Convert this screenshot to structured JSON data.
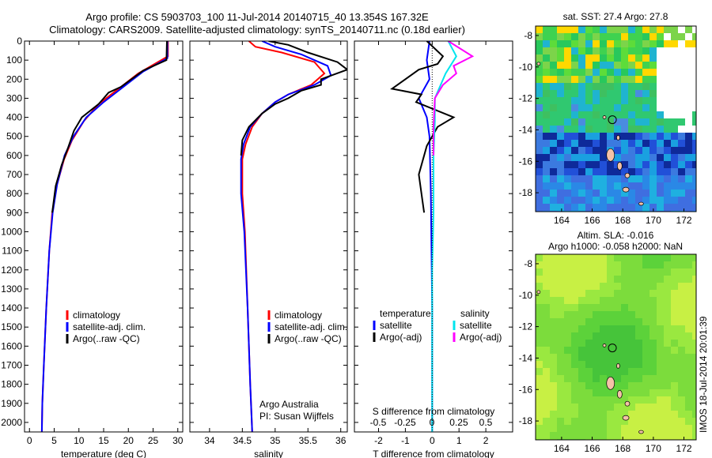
{
  "header": {
    "title_line1": "Argo profile: CS 5903703_100 11-Jul-2014 20140715_40 13.354S 167.32E",
    "title_line2": "Climatology: CARS2009. Satellite-adjusted climatology: synTS_20140711.nc (0.18d earlier)"
  },
  "colors": {
    "climatology": "#ff0000",
    "satellite": "#0000ff",
    "argo": "#000000",
    "sal_satellite": "#00e5ee",
    "sal_argo": "#ff00ff",
    "map_land": "#f4c2a8"
  },
  "chart_data": [
    {
      "id": "temperature",
      "type": "line",
      "xlabel": "temperature (deg C)",
      "xlim": [
        -1,
        31
      ],
      "xticks": [
        0,
        5,
        10,
        15,
        20,
        25,
        30
      ],
      "ylim": [
        0,
        2050
      ],
      "yticks": [
        0,
        100,
        200,
        300,
        400,
        500,
        600,
        700,
        800,
        900,
        1000,
        1100,
        1200,
        1300,
        1400,
        1500,
        1600,
        1700,
        1800,
        1900,
        2000
      ],
      "legend": [
        "climatology",
        "satellite-adj. clim.",
        "Argo(..raw -QC)"
      ],
      "series": [
        {
          "name": "climatology",
          "color": "#ff0000",
          "points": [
            [
              28,
              0
            ],
            [
              28,
              80
            ],
            [
              22,
              170
            ],
            [
              18,
              250
            ],
            [
              14,
              330
            ],
            [
              11,
              420
            ],
            [
              8.6,
              520
            ],
            [
              7,
              620
            ],
            [
              5.5,
              760
            ],
            [
              4.6,
              900
            ],
            [
              4,
              1100
            ],
            [
              3.4,
              1400
            ],
            [
              2.9,
              1700
            ],
            [
              2.6,
              1900
            ],
            [
              2.5,
              2050
            ]
          ]
        },
        {
          "name": "satellite-adj. clim.",
          "color": "#0000ff",
          "points": [
            [
              27.9,
              0
            ],
            [
              27.9,
              90
            ],
            [
              23,
              160
            ],
            [
              19,
              240
            ],
            [
              15,
              320
            ],
            [
              11.5,
              400
            ],
            [
              8.9,
              500
            ],
            [
              7.1,
              600
            ],
            [
              5.6,
              750
            ],
            [
              4.7,
              900
            ],
            [
              4,
              1100
            ],
            [
              3.4,
              1400
            ],
            [
              2.9,
              1700
            ],
            [
              2.6,
              1900
            ],
            [
              2.5,
              2050
            ]
          ]
        },
        {
          "name": "Argo(..raw -QC)",
          "color": "#000000",
          "points": [
            [
              27.8,
              0
            ],
            [
              27.7,
              100
            ],
            [
              23,
              155
            ],
            [
              18.5,
              240
            ],
            [
              16,
              270
            ],
            [
              14,
              330
            ],
            [
              10.6,
              400
            ],
            [
              9,
              470
            ],
            [
              7.8,
              560
            ],
            [
              6.5,
              650
            ],
            [
              5.3,
              760
            ],
            [
              4.6,
              900
            ]
          ]
        }
      ]
    },
    {
      "id": "salinity",
      "type": "line",
      "xlabel": "salinity",
      "xlim": [
        33.7,
        36.1
      ],
      "xticks": [
        34,
        34.5,
        35,
        35.5,
        36
      ],
      "ylim": [
        0,
        2050
      ],
      "legend": [
        "climatology",
        "satellite-adj. clim.",
        "Argo(..raw -QC)"
      ],
      "annotations": [
        "Argo Australia",
        "PI: Susan Wijffels"
      ],
      "series": [
        {
          "name": "climatology",
          "color": "#ff0000",
          "points": [
            [
              34.6,
              0
            ],
            [
              34.7,
              30
            ],
            [
              35.1,
              60
            ],
            [
              35.6,
              110
            ],
            [
              35.75,
              170
            ],
            [
              35.55,
              230
            ],
            [
              35.2,
              280
            ],
            [
              35,
              320
            ],
            [
              34.8,
              380
            ],
            [
              34.65,
              450
            ],
            [
              34.55,
              540
            ],
            [
              34.5,
              620
            ],
            [
              34.5,
              800
            ],
            [
              34.54,
              1000
            ],
            [
              34.58,
              1400
            ],
            [
              34.62,
              1800
            ],
            [
              34.65,
              2050
            ]
          ]
        },
        {
          "name": "satellite-adj. clim.",
          "color": "#0000ff",
          "points": [
            [
              34.8,
              0
            ],
            [
              35,
              30
            ],
            [
              35.4,
              70
            ],
            [
              35.8,
              130
            ],
            [
              35.85,
              180
            ],
            [
              35.6,
              230
            ],
            [
              35.2,
              280
            ],
            [
              35,
              320
            ],
            [
              34.8,
              380
            ],
            [
              34.62,
              450
            ],
            [
              34.52,
              540
            ],
            [
              34.48,
              620
            ],
            [
              34.48,
              800
            ],
            [
              34.53,
              1000
            ],
            [
              34.58,
              1400
            ],
            [
              34.62,
              1800
            ],
            [
              34.65,
              2050
            ]
          ]
        },
        {
          "name": "Argo(..raw -QC)",
          "color": "#000000",
          "points": [
            [
              34.9,
              0
            ],
            [
              35.2,
              20
            ],
            [
              35.5,
              60
            ],
            [
              35.95,
              110
            ],
            [
              36.1,
              150
            ],
            [
              35.7,
              200
            ],
            [
              35.7,
              230
            ],
            [
              35.4,
              260
            ],
            [
              35.2,
              300
            ],
            [
              35,
              330
            ],
            [
              34.8,
              380
            ],
            [
              34.6,
              450
            ],
            [
              34.5,
              520
            ],
            [
              34.48,
              600
            ]
          ]
        }
      ]
    },
    {
      "id": "difference",
      "type": "line",
      "xlabel_top": "S difference from climatology",
      "xlabel": "T difference from climatology",
      "xticks_top": [
        -0.5,
        -0.25,
        0,
        0.25,
        0.5
      ],
      "xticks": [
        -2,
        -1,
        0,
        1,
        2
      ],
      "xlim": [
        -2.9,
        3
      ],
      "ylim": [
        0,
        2050
      ],
      "legend_left_title": "temperature",
      "legend_right_title": "salinity",
      "legend": [
        "satellite",
        "Argo(-adj)",
        "satellite",
        "Argo(-adj)"
      ],
      "series": [
        {
          "name": "T satellite",
          "color": "#0000ff",
          "points": [
            [
              -0.1,
              0
            ],
            [
              -0.2,
              100
            ],
            [
              -0.1,
              200
            ],
            [
              -0.5,
              300
            ],
            [
              -0.2,
              400
            ],
            [
              -0.1,
              500
            ],
            [
              -0.05,
              800
            ],
            [
              0,
              1400
            ],
            [
              0,
              2050
            ]
          ]
        },
        {
          "name": "T Argo(-adj)",
          "color": "#000000",
          "points": [
            [
              -0.2,
              0
            ],
            [
              0.4,
              80
            ],
            [
              0.2,
              120
            ],
            [
              -0.5,
              150
            ],
            [
              -1.5,
              250
            ],
            [
              -0.4,
              280
            ],
            [
              -0.6,
              320
            ],
            [
              0.8,
              400
            ],
            [
              0.2,
              450
            ],
            [
              -0.2,
              550
            ],
            [
              -0.5,
              700
            ],
            [
              -0.3,
              900
            ]
          ]
        },
        {
          "name": "S satellite",
          "color": "#00e5ee",
          "points": [
            [
              0.6,
              0
            ],
            [
              0.9,
              80
            ],
            [
              0.5,
              170
            ],
            [
              0.1,
              300
            ],
            [
              0.1,
              420
            ],
            [
              0.05,
              600
            ],
            [
              0.05,
              900
            ],
            [
              0,
              1200
            ],
            [
              0,
              2050
            ]
          ]
        },
        {
          "name": "S Argo(-adj)",
          "color": "#ff00ff",
          "points": [
            [
              0.6,
              0
            ],
            [
              1.5,
              80
            ],
            [
              0.8,
              130
            ],
            [
              0.9,
              170
            ],
            [
              0.4,
              230
            ],
            [
              0.1,
              300
            ],
            [
              0.05,
              450
            ],
            [
              0.05,
              600
            ]
          ]
        }
      ]
    },
    {
      "id": "sst-map",
      "type": "heatmap",
      "title": "sat. SST: 27.4 Argo: 27.8",
      "xticks": [
        164,
        166,
        168,
        170,
        172
      ],
      "yticks": [
        -8,
        -10,
        -12,
        -14,
        -16,
        -18
      ],
      "xlim": [
        162.3,
        172.8
      ],
      "ylim": [
        -19.2,
        -7.4
      ]
    },
    {
      "id": "sla-map",
      "type": "heatmap",
      "title_line1": "Altim. SLA: -0.016",
      "title_line2": "Argo h1000: -0.058 h2000: NaN",
      "xticks": [
        164,
        166,
        168,
        170,
        172
      ],
      "yticks": [
        -8,
        -10,
        -12,
        -14,
        -16,
        -18
      ],
      "xlim": [
        162.3,
        172.8
      ],
      "ylim": [
        -19.2,
        -7.4
      ]
    }
  ],
  "yaxis": {
    "ticks": [
      0,
      100,
      200,
      300,
      400,
      500,
      600,
      700,
      800,
      900,
      1000,
      1100,
      1200,
      1300,
      1400,
      1500,
      1600,
      1700,
      1800,
      1900,
      2000
    ]
  },
  "footer": {
    "stamp": "IMOS 18-Jul-2014 20:01:39"
  }
}
